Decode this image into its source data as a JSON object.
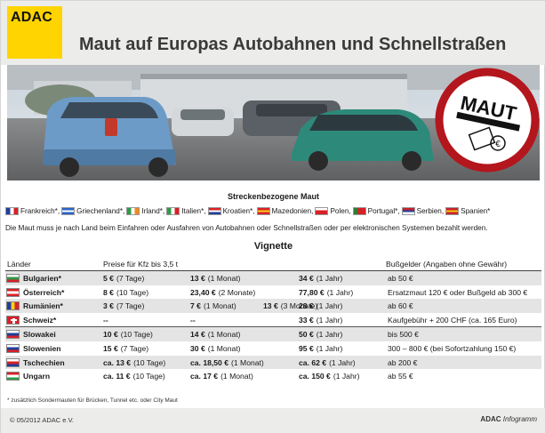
{
  "header": {
    "logo": "ADAC",
    "title": "Maut auf Europas Autobahnen und Schnellstraßen"
  },
  "photo": {
    "sign_text": "MAUT"
  },
  "strecken": {
    "title": "Streckenbezogene Maut",
    "countries": [
      {
        "name": "Frankreich*,",
        "flag": [
          "#1f3f9a",
          "#ffffff",
          "#d92027"
        ],
        "dir": "v"
      },
      {
        "name": "Griechenland*,",
        "flag": [
          "#2b64c4",
          "#ffffff",
          "#2b64c4"
        ],
        "dir": "h"
      },
      {
        "name": "Irland*,",
        "flag": [
          "#2e9a48",
          "#ffffff",
          "#f28a1e"
        ],
        "dir": "v"
      },
      {
        "name": "Italien*,",
        "flag": [
          "#2e9a48",
          "#ffffff",
          "#d92027"
        ],
        "dir": "v"
      },
      {
        "name": "Kroatien*,",
        "flag": [
          "#d92027",
          "#ffffff",
          "#1f3f9a"
        ],
        "dir": "h"
      },
      {
        "name": "Mazedonien,",
        "flag": [
          "#d92027",
          "#f7d117",
          "#d92027"
        ],
        "dir": "h"
      },
      {
        "name": "Polen,",
        "flag": [
          "#ffffff",
          "#d92027",
          "#d92027"
        ],
        "dir": "h"
      },
      {
        "name": "Portugal*,",
        "flag": [
          "#2e7d32",
          "#d92027",
          "#d92027"
        ],
        "dir": "v"
      },
      {
        "name": "Serbien,",
        "flag": [
          "#c8202f",
          "#1f3f9a",
          "#ffffff"
        ],
        "dir": "h"
      },
      {
        "name": "Spanien*",
        "flag": [
          "#c8202f",
          "#f7c600",
          "#c8202f"
        ],
        "dir": "h"
      }
    ],
    "note": "Die Maut muss je nach Land beim Einfahren oder Ausfahren von Autobahnen oder Schnellstraßen oder per elektronischen Systemen bezahlt werden."
  },
  "vignette": {
    "title": "Vignette",
    "headers": {
      "laender": "Länder",
      "preise": "Preise für Kfz bis 3,5 t",
      "bussgelder": "Bußgelder (Angaben ohne Gewähr)"
    },
    "rows": [
      {
        "country": "Bulgarien*",
        "flag": [
          "#ffffff",
          "#2e9a48",
          "#d92027"
        ],
        "dir": "h",
        "p1": "5 €",
        "p1u": "(7 Tage)",
        "p2": "13 €",
        "p2u": "(1 Monat)",
        "p3": "34 €",
        "p3u": "(1 Jahr)",
        "fine": "ab 50 €",
        "group": 1
      },
      {
        "country": "Österreich*",
        "flag": [
          "#d92027",
          "#ffffff",
          "#d92027"
        ],
        "dir": "h",
        "p1": "8 €",
        "p1u": "(10 Tage)",
        "p2": "23,40 €",
        "p2u": "(2 Monate)",
        "p3": "77,80 €",
        "p3u": "(1 Jahr)",
        "fine": "Ersatzmaut 120 €  oder Bußgeld ab 300 €",
        "group": 1
      },
      {
        "country": "Rumänien*",
        "flag": [
          "#1f3f9a",
          "#f7d117",
          "#d92027"
        ],
        "dir": "v",
        "p1": "3 €",
        "p1u": "(7 Tage)",
        "p2": "7 €",
        "p2u": "(1 Monat)",
        "p2b": "13 €",
        "p2bu": "(3 Monate)",
        "p3": "28 €",
        "p3u": "(1 Jahr)",
        "fine": "ab 60 €",
        "group": 1
      },
      {
        "country": "Schweiz*",
        "flag": [
          "#d92027",
          "#d92027",
          "#d92027"
        ],
        "dir": "h",
        "cross": true,
        "p1": "--",
        "p1u": "",
        "p2": "--",
        "p2u": "",
        "p3": "33 €",
        "p3u": "(1 Jahr)",
        "fine": "Kaufgebühr + 200 CHF (ca. 165 Euro)",
        "group": 1
      },
      {
        "country": "Slowakei",
        "flag": [
          "#ffffff",
          "#1f3f9a",
          "#d92027"
        ],
        "dir": "h",
        "p1": "10 €",
        "p1u": "(10 Tage)",
        "p2": "14 €",
        "p2u": "(1 Monat)",
        "p3": "50 €",
        "p3u": "(1 Jahr)",
        "fine": "bis 500 €",
        "group": 2
      },
      {
        "country": "Slowenien",
        "flag": [
          "#ffffff",
          "#1f3f9a",
          "#d92027"
        ],
        "dir": "h",
        "p1": "15 €",
        "p1u": "(7 Tage)",
        "p2": "30 €",
        "p2u": "(1 Monat)",
        "p3": "95 €",
        "p3u": "(1 Jahr)",
        "fine": "300 – 800 € (bei Sofortzahlung 150 €)",
        "group": 2
      },
      {
        "country": "Tschechien",
        "flag": [
          "#ffffff",
          "#d92027",
          "#1f3f9a"
        ],
        "dir": "h",
        "p1": "ca. 13 €",
        "p1u": "(10 Tage)",
        "p2": "ca. 18,50 €",
        "p2u": "(1 Monat)",
        "p3": "ca. 62 €",
        "p3u": "(1 Jahr)",
        "fine": "ab 200 €",
        "group": 2
      },
      {
        "country": "Ungarn",
        "flag": [
          "#d92027",
          "#ffffff",
          "#2e9a48"
        ],
        "dir": "h",
        "p1": "ca. 11 €",
        "p1u": "(10 Tage)",
        "p2": "ca. 17 €",
        "p2u": "(1 Monat)",
        "p3": "ca. 150 €",
        "p3u": "(1 Jahr)",
        "fine": "ab 55 €",
        "group": 2
      }
    ]
  },
  "footnote": "* zusätzlich Sondermauten für Brücken, Tunnel etc. oder City Maut",
  "footer": {
    "copyright": "© 05/2012 ADAC e.V.",
    "brand": "ADAC",
    "brand_suffix": "Infogramm"
  }
}
